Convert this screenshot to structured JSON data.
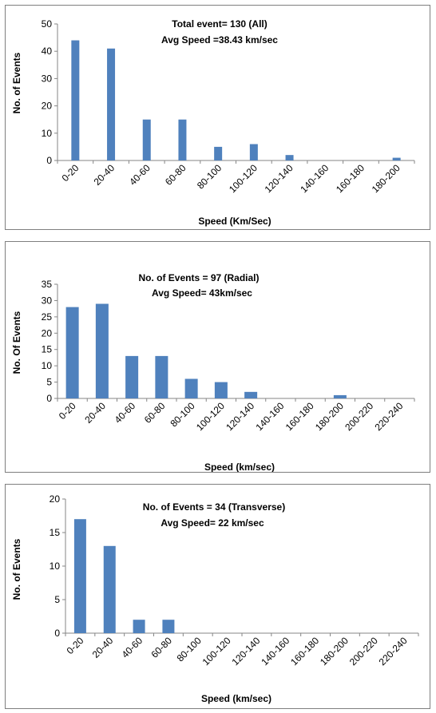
{
  "colors": {
    "bar": "#4f81bd",
    "axis": "#868686",
    "text": "#000000",
    "border": "#7f7f7f"
  },
  "chart_data": [
    {
      "type": "bar",
      "annotation": [
        "Total event= 130 (All)",
        "Avg Speed =38.43 km/sec"
      ],
      "xlabel": "Speed (Km/Sec)",
      "ylabel": "No. of Events",
      "categories": [
        "0-20",
        "20-40",
        "40-60",
        "60-80",
        "80-100",
        "100-120",
        "120-140",
        "140-160",
        "160-180",
        "180-200"
      ],
      "values": [
        44,
        41,
        15,
        15,
        5,
        6,
        2,
        0,
        0,
        1
      ],
      "ylim": [
        0,
        50
      ],
      "yticks": [
        "0",
        "10",
        "20",
        "30",
        "40",
        "50"
      ],
      "grid": false,
      "legend": "none"
    },
    {
      "type": "bar",
      "annotation": [
        "No. of Events = 97 (Radial)",
        "Avg Speed= 43km/sec"
      ],
      "xlabel": "Speed (km/sec)",
      "ylabel": "No. Of Events",
      "categories": [
        "0-20",
        "20-40",
        "40-60",
        "60-80",
        "80-100",
        "100-120",
        "120-140",
        "140-160",
        "160-180",
        "180-200",
        "200-220",
        "220-240"
      ],
      "values": [
        28,
        29,
        13,
        13,
        6,
        5,
        2,
        0,
        0,
        1,
        0,
        0
      ],
      "ylim": [
        0,
        35
      ],
      "yticks": [
        "0",
        "5",
        "10",
        "15",
        "20",
        "25",
        "30",
        "35"
      ],
      "grid": false,
      "legend": "none"
    },
    {
      "type": "bar",
      "annotation": [
        "No. of Events = 34 (Transverse)",
        "Avg Speed= 22 km/sec"
      ],
      "xlabel": "Speed (km/sec)",
      "ylabel": "No. of Events",
      "categories": [
        "0-20",
        "20-40",
        "40-60",
        "60-80",
        "80-100",
        "100-120",
        "120-140",
        "140-160",
        "160-180",
        "180-200",
        "200-220",
        "220-240"
      ],
      "values": [
        17,
        13,
        2,
        2,
        0,
        0,
        0,
        0,
        0,
        0,
        0,
        0
      ],
      "ylim": [
        0,
        20
      ],
      "yticks": [
        "0",
        "5",
        "10",
        "15",
        "20"
      ],
      "grid": false,
      "legend": "none"
    }
  ]
}
